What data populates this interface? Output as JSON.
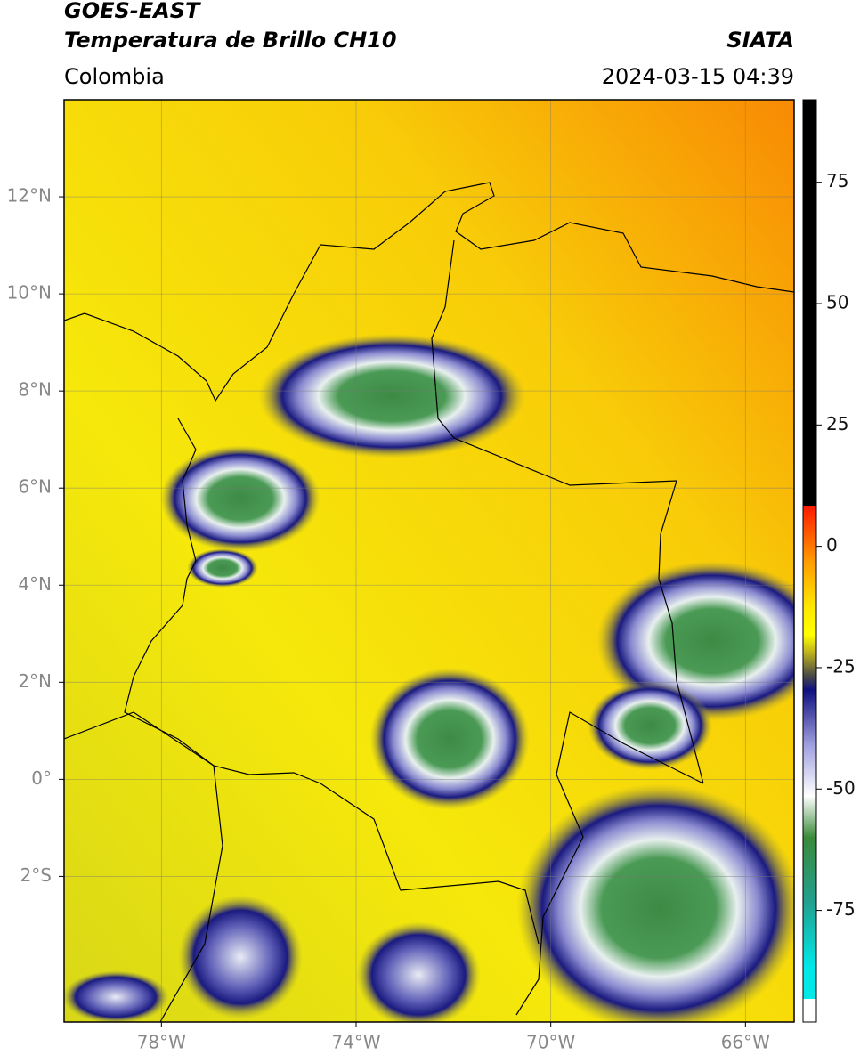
{
  "header": {
    "title": "GOES-EAST",
    "subtitle": "Temperatura de Brillo CH10",
    "source": "SIATA",
    "region": "Colombia",
    "datetime": "2024-03-15 04:39"
  },
  "map": {
    "xlim": [
      -80,
      -65
    ],
    "ylim": [
      -5,
      14
    ],
    "xticks": [
      {
        "value": -78,
        "label": "78°W"
      },
      {
        "value": -74,
        "label": "74°W"
      },
      {
        "value": -70,
        "label": "70°W"
      },
      {
        "value": -66,
        "label": "66°W"
      }
    ],
    "yticks": [
      {
        "value": 12,
        "label": "12°N"
      },
      {
        "value": 10,
        "label": "10°N"
      },
      {
        "value": 8,
        "label": "8°N"
      },
      {
        "value": 6,
        "label": "6°N"
      },
      {
        "value": 4,
        "label": "4°N"
      },
      {
        "value": 2,
        "label": "2°N"
      },
      {
        "value": 0,
        "label": "0°"
      },
      {
        "value": -2,
        "label": "2°S"
      }
    ]
  },
  "colorbar": {
    "lim": [
      -98,
      92
    ],
    "ticks": [
      75,
      50,
      25,
      0,
      -25,
      -50,
      -75
    ]
  }
}
